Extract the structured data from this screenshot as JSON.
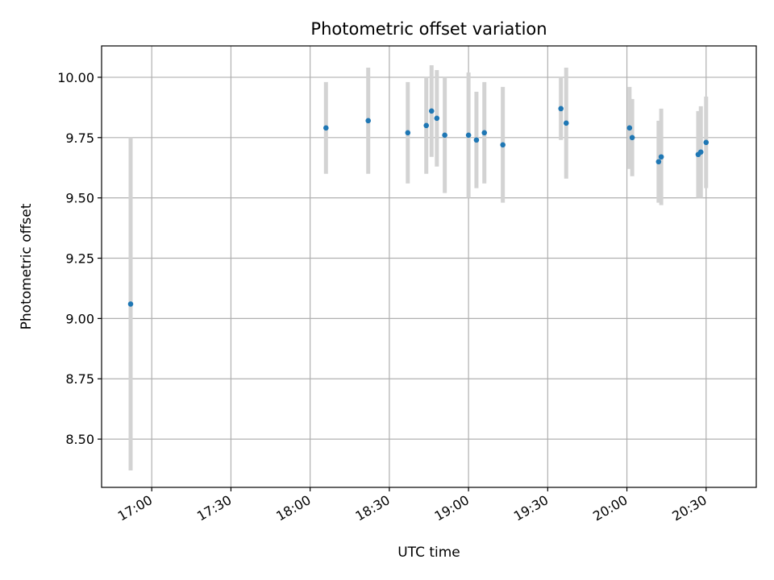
{
  "chart_data": {
    "type": "scatter",
    "title": "Photometric offset variation",
    "xlabel": "UTC time",
    "ylabel": "Photometric offset",
    "x_unit": "HH:MM UTC",
    "xlim": [
      "16:41",
      "20:49"
    ],
    "ylim": [
      8.3,
      10.13
    ],
    "xticks": [
      "17:00",
      "17:30",
      "18:00",
      "18:30",
      "19:00",
      "19:30",
      "20:00",
      "20:30"
    ],
    "yticks": [
      8.5,
      8.75,
      9.0,
      9.25,
      9.5,
      9.75,
      10.0
    ],
    "ytick_labels": [
      "8.50",
      "8.75",
      "9.00",
      "9.25",
      "9.50",
      "9.75",
      "10.00"
    ],
    "grid": true,
    "legend": "none",
    "colors": {
      "points": "#1f77b4",
      "errorbars": "#d3d3d3",
      "grid": "#b0b0b0"
    },
    "points": [
      {
        "x": "16:52",
        "y": 9.06,
        "err": 0.69
      },
      {
        "x": "18:06",
        "y": 9.79,
        "err": 0.19
      },
      {
        "x": "18:22",
        "y": 9.82,
        "err": 0.22
      },
      {
        "x": "18:37",
        "y": 9.77,
        "err": 0.21
      },
      {
        "x": "18:44",
        "y": 9.8,
        "err": 0.2
      },
      {
        "x": "18:46",
        "y": 9.86,
        "err": 0.19
      },
      {
        "x": "18:48",
        "y": 9.83,
        "err": 0.2
      },
      {
        "x": "18:51",
        "y": 9.76,
        "err": 0.24
      },
      {
        "x": "19:00",
        "y": 9.76,
        "err": 0.26
      },
      {
        "x": "19:03",
        "y": 9.74,
        "err": 0.2
      },
      {
        "x": "19:06",
        "y": 9.77,
        "err": 0.21
      },
      {
        "x": "19:13",
        "y": 9.72,
        "err": 0.24
      },
      {
        "x": "19:35",
        "y": 9.87,
        "err": 0.13
      },
      {
        "x": "19:37",
        "y": 9.81,
        "err": 0.23
      },
      {
        "x": "20:01",
        "y": 9.79,
        "err": 0.17
      },
      {
        "x": "20:02",
        "y": 9.75,
        "err": 0.16
      },
      {
        "x": "20:12",
        "y": 9.65,
        "err": 0.17
      },
      {
        "x": "20:13",
        "y": 9.67,
        "err": 0.2
      },
      {
        "x": "20:27",
        "y": 9.68,
        "err": 0.18
      },
      {
        "x": "20:28",
        "y": 9.69,
        "err": 0.19
      },
      {
        "x": "20:30",
        "y": 9.73,
        "err": 0.19
      }
    ]
  }
}
